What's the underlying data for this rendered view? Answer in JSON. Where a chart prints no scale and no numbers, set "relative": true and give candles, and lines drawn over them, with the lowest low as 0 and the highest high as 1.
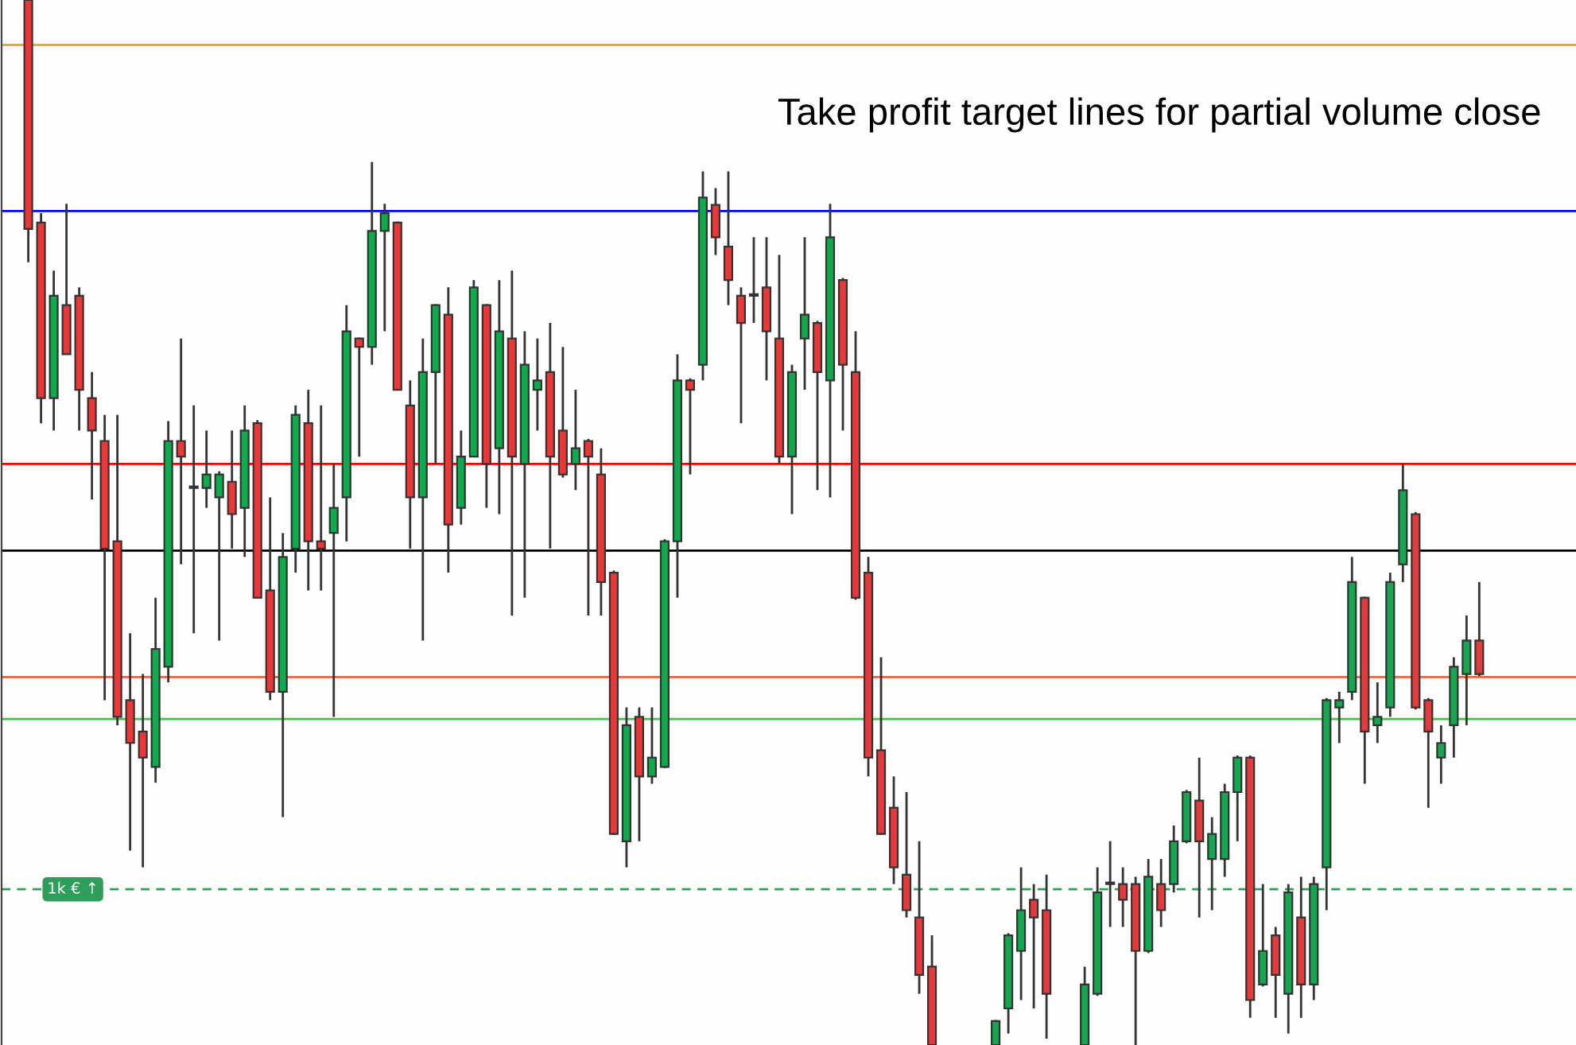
{
  "chart_data": {
    "type": "candlestick",
    "relative": true,
    "categories": [
      null,
      null,
      null,
      null,
      null,
      null,
      null,
      null,
      null,
      null,
      null,
      null,
      null,
      null,
      null,
      null,
      null,
      null,
      null,
      null,
      null,
      null,
      null,
      null,
      null,
      null,
      null,
      null,
      null,
      null,
      null,
      null,
      null,
      null,
      null,
      null,
      null,
      null,
      null,
      null,
      null,
      null,
      null,
      null,
      null,
      null,
      null,
      null,
      null,
      null,
      null,
      null,
      null,
      null,
      null,
      null,
      null,
      null,
      null,
      null,
      null,
      null,
      null,
      null,
      null,
      null,
      null,
      null,
      null,
      null,
      null,
      null,
      null,
      null,
      null,
      null,
      null,
      null,
      null,
      null,
      null,
      null,
      null,
      null,
      null,
      null,
      null,
      null,
      null,
      null,
      null,
      null,
      null,
      null,
      null,
      null,
      null,
      null,
      null,
      null,
      null,
      null,
      null,
      null,
      null,
      null,
      null,
      null,
      null,
      null,
      null,
      null,
      null,
      null,
      null,
      null,
      null,
      null,
      null,
      null,
      null,
      null,
      null
    ],
    "ohlc": [
      null,
      [
        1,
        1,
        0.749,
        0.781
      ],
      [
        0.787,
        0.796,
        0.595,
        0.619
      ],
      [
        0.619,
        0.741,
        0.588,
        0.717
      ],
      [
        0.708,
        0.805,
        0.661,
        0.661
      ],
      [
        0.717,
        0.725,
        0.588,
        0.627
      ],
      [
        0.619,
        0.644,
        0.522,
        0.588
      ],
      [
        0.578,
        0.603,
        0.33,
        0.475
      ],
      [
        0.482,
        0.603,
        0.306,
        0.314
      ],
      [
        0.33,
        0.394,
        0.186,
        0.289
      ],
      [
        0.3,
        0.355,
        0.17,
        0.275
      ],
      [
        0.266,
        0.428,
        0.251,
        0.379
      ],
      [
        0.362,
        0.597,
        0.347,
        0.578
      ],
      [
        0.578,
        0.676,
        0.46,
        0.563
      ],
      [
        0.533,
        0.612,
        0.394,
        0.533
      ],
      [
        0.533,
        0.588,
        0.514,
        0.546
      ],
      [
        0.524,
        0.549,
        0.387,
        0.546
      ],
      [
        0.539,
        0.588,
        0.475,
        0.508
      ],
      [
        0.514,
        0.612,
        0.467,
        0.588
      ],
      [
        0.595,
        0.598,
        0.428,
        0.428
      ],
      [
        0.435,
        0.524,
        0.33,
        0.338
      ],
      [
        0.338,
        0.49,
        0.218,
        0.467
      ],
      [
        0.475,
        0.612,
        0.452,
        0.603
      ],
      [
        0.595,
        0.627,
        0.435,
        0.482
      ],
      [
        0.482,
        0.612,
        0.435,
        0.475
      ],
      [
        0.49,
        0.556,
        0.314,
        0.514
      ],
      [
        0.524,
        0.708,
        0.482,
        0.683
      ],
      [
        0.676,
        0.677,
        0.563,
        0.668
      ],
      [
        0.668,
        0.845,
        0.651,
        0.779
      ],
      [
        0.779,
        0.805,
        0.683,
        0.796
      ],
      [
        0.787,
        0.788,
        0.627,
        0.627
      ],
      [
        0.612,
        0.636,
        0.475,
        0.524
      ],
      [
        0.524,
        0.676,
        0.387,
        0.644
      ],
      [
        0.644,
        0.709,
        0.556,
        0.708
      ],
      [
        0.699,
        0.725,
        0.452,
        0.498
      ],
      [
        0.514,
        0.588,
        0.498,
        0.563
      ],
      [
        0.563,
        0.732,
        0.563,
        0.725
      ],
      [
        0.708,
        0.709,
        0.514,
        0.556
      ],
      [
        0.571,
        0.732,
        0.508,
        0.683
      ],
      [
        0.676,
        0.741,
        0.411,
        0.563
      ],
      [
        0.556,
        0.683,
        0.428,
        0.651
      ],
      [
        0.627,
        0.676,
        0.588,
        0.636
      ],
      [
        0.644,
        0.691,
        0.475,
        0.563
      ],
      [
        0.588,
        0.668,
        0.543,
        0.546
      ],
      [
        0.556,
        0.627,
        0.531,
        0.571
      ],
      [
        0.578,
        0.58,
        0.411,
        0.563
      ],
      [
        0.546,
        0.571,
        0.411,
        0.443
      ],
      [
        0.452,
        0.454,
        0.201,
        0.202
      ],
      [
        0.195,
        0.323,
        0.17,
        0.306
      ],
      [
        0.314,
        0.323,
        0.195,
        0.257
      ],
      [
        0.257,
        0.323,
        0.25,
        0.275
      ],
      [
        0.266,
        0.484,
        0.265,
        0.482
      ],
      [
        0.482,
        0.661,
        0.428,
        0.636
      ],
      [
        0.636,
        0.638,
        0.546,
        0.627
      ],
      [
        0.651,
        0.836,
        0.636,
        0.811
      ],
      [
        0.804,
        0.82,
        0.756,
        0.773
      ],
      [
        0.764,
        0.836,
        0.708,
        0.732
      ],
      [
        0.717,
        0.725,
        0.595,
        0.691
      ],
      [
        0.717,
        0.773,
        0.691,
        0.717
      ],
      [
        0.725,
        0.773,
        0.636,
        0.683
      ],
      [
        0.676,
        0.756,
        0.556,
        0.563
      ],
      [
        0.563,
        0.651,
        0.508,
        0.644
      ],
      [
        0.676,
        0.773,
        0.627,
        0.699
      ],
      [
        0.691,
        0.693,
        0.531,
        0.644
      ],
      [
        0.636,
        0.805,
        0.524,
        0.773
      ],
      [
        0.732,
        0.734,
        0.588,
        0.651
      ],
      [
        0.644,
        0.683,
        0.426,
        0.428
      ],
      [
        0.452,
        0.467,
        0.257,
        0.275
      ],
      [
        0.282,
        0.371,
        0.201,
        0.202
      ],
      [
        0.227,
        0.257,
        0.154,
        0.17
      ],
      [
        0.163,
        0.242,
        0.122,
        0.129
      ],
      [
        0.122,
        0.195,
        0.049,
        0.067
      ],
      [
        0.075,
        0.105,
        0,
        0
      ],
      null,
      null,
      null,
      null,
      [
        0,
        0.024,
        0,
        0.023
      ],
      [
        0.035,
        0.107,
        0.011,
        0.105
      ],
      [
        0.09,
        0.17,
        0.043,
        0.129
      ],
      [
        0.139,
        0.154,
        0.035,
        0.122
      ],
      [
        0.129,
        0.163,
        0.006,
        0.049
      ],
      null,
      null,
      [
        0,
        0.075,
        0,
        0.058
      ],
      [
        0.049,
        0.17,
        0.047,
        0.146
      ],
      [
        0.154,
        0.195,
        0.113,
        0.154
      ],
      [
        0.154,
        0.17,
        0.113,
        0.139
      ],
      [
        0.154,
        0.161,
        0,
        0.09
      ],
      [
        0.09,
        0.178,
        0.088,
        0.161
      ],
      [
        0.154,
        0.178,
        0.113,
        0.129
      ],
      [
        0.154,
        0.21,
        0.146,
        0.195
      ],
      [
        0.195,
        0.244,
        0.193,
        0.242
      ],
      [
        0.234,
        0.275,
        0.122,
        0.195
      ],
      [
        0.178,
        0.218,
        0.129,
        0.202
      ],
      [
        0.178,
        0.25,
        0.161,
        0.242
      ],
      [
        0.242,
        0.277,
        0.195,
        0.275
      ],
      [
        0.275,
        0.277,
        0.026,
        0.043
      ],
      [
        0.058,
        0.154,
        0.056,
        0.09
      ],
      [
        0.105,
        0.113,
        0.026,
        0.067
      ],
      [
        0.049,
        0.154,
        0.011,
        0.146
      ],
      [
        0.122,
        0.161,
        0.026,
        0.058
      ],
      [
        0.058,
        0.161,
        0.043,
        0.154
      ],
      [
        0.17,
        0.332,
        0.129,
        0.33
      ],
      [
        0.323,
        0.338,
        0.289,
        0.33
      ],
      [
        0.338,
        0.467,
        0.33,
        0.443
      ],
      [
        0.428,
        0.429,
        0.25,
        0.3
      ],
      [
        0.306,
        0.347,
        0.289,
        0.314
      ],
      [
        0.323,
        0.452,
        0.314,
        0.443
      ],
      [
        0.46,
        0.556,
        0.443,
        0.531
      ],
      [
        0.508,
        0.51,
        0.321,
        0.323
      ],
      [
        0.33,
        0.332,
        0.227,
        0.3
      ],
      [
        0.275,
        0.306,
        0.25,
        0.289
      ],
      [
        0.306,
        0.371,
        0.275,
        0.362
      ],
      [
        0.355,
        0.411,
        0.306,
        0.387
      ],
      [
        0.387,
        0.443,
        0.353,
        0.355
      ],
      null,
      null,
      null,
      null,
      null,
      null,
      null
    ],
    "ref_lines": [
      {
        "axis": "y",
        "value": 0.957,
        "color": "#f5a623"
      },
      {
        "axis": "y",
        "value": 0.798,
        "color": "#0000ff"
      },
      {
        "axis": "y",
        "value": 0.556,
        "color": "#ff0000"
      },
      {
        "axis": "y",
        "value": 0.473,
        "color": "#000000"
      },
      {
        "axis": "y",
        "value": 0.352,
        "color": "#e8643c"
      },
      {
        "axis": "y",
        "value": 0.312,
        "color": "#3cc83c"
      },
      {
        "axis": "y",
        "value": 0.149,
        "color": "#2e9e5b",
        "line_style": "dashed",
        "label": "1k € ↑"
      }
    ],
    "annotations": [
      "Take profit target lines for partial volume close"
    ]
  }
}
